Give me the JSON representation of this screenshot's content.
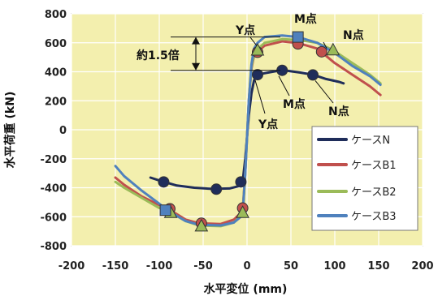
{
  "chart_data": {
    "type": "line",
    "title": "",
    "xlabel": "水平変位 (mm)",
    "ylabel": "水平荷重 (kN)",
    "xlim": [
      -200,
      200
    ],
    "ylim": [
      -800,
      800
    ],
    "x_ticks": [
      "-200",
      "-150",
      "-100",
      "-50",
      "0",
      "50",
      "100",
      "150",
      "200"
    ],
    "y_ticks": [
      "800",
      "600",
      "400",
      "200",
      "0",
      "-200",
      "-400",
      "-600",
      "-800"
    ],
    "plot_background": "#f3efae",
    "legend_placement": "bottom-right",
    "series": [
      {
        "name": "ケースN",
        "color": "#1f2d5a",
        "points": [
          [
            -110,
            -330
          ],
          [
            -100,
            -350
          ],
          [
            -80,
            -385
          ],
          [
            -60,
            -400
          ],
          [
            -40,
            -408
          ],
          [
            -20,
            -405
          ],
          [
            -10,
            -390
          ],
          [
            -5,
            -360
          ],
          [
            -2,
            -200
          ],
          [
            0,
            -50
          ],
          [
            2,
            100
          ],
          [
            5,
            250
          ],
          [
            8,
            340
          ],
          [
            12,
            380
          ],
          [
            20,
            390
          ],
          [
            40,
            412
          ],
          [
            60,
            395
          ],
          [
            75,
            380
          ],
          [
            90,
            350
          ],
          [
            105,
            330
          ],
          [
            110,
            320
          ]
        ],
        "markers": [
          [
            -95,
            -360
          ],
          [
            -35,
            -410
          ],
          [
            -7,
            -360
          ],
          [
            12,
            380
          ],
          [
            40,
            410
          ],
          [
            75,
            378
          ]
        ],
        "marker_shape": "circle"
      },
      {
        "name": "ケースB1",
        "color": "#c0504d",
        "points": [
          [
            -150,
            -330
          ],
          [
            -140,
            -380
          ],
          [
            -120,
            -460
          ],
          [
            -100,
            -520
          ],
          [
            -90,
            -545
          ],
          [
            -70,
            -620
          ],
          [
            -55,
            -645
          ],
          [
            -30,
            -650
          ],
          [
            -15,
            -620
          ],
          [
            -5,
            -560
          ],
          [
            -2,
            -300
          ],
          [
            0,
            -50
          ],
          [
            2,
            200
          ],
          [
            5,
            420
          ],
          [
            8,
            510
          ],
          [
            12,
            540
          ],
          [
            20,
            580
          ],
          [
            40,
            610
          ],
          [
            58,
            598
          ],
          [
            80,
            560
          ],
          [
            100,
            460
          ],
          [
            120,
            380
          ],
          [
            140,
            300
          ],
          [
            152,
            240
          ]
        ],
        "markers": [
          [
            -88,
            -545
          ],
          [
            -52,
            -645
          ],
          [
            -5,
            -540
          ],
          [
            12,
            535
          ],
          [
            58,
            592
          ],
          [
            85,
            538
          ]
        ],
        "marker_shape": "circle"
      },
      {
        "name": "ケースB2",
        "color": "#9bbb59",
        "points": [
          [
            -150,
            -360
          ],
          [
            -140,
            -400
          ],
          [
            -120,
            -470
          ],
          [
            -100,
            -540
          ],
          [
            -90,
            -560
          ],
          [
            -70,
            -630
          ],
          [
            -55,
            -660
          ],
          [
            -30,
            -665
          ],
          [
            -15,
            -640
          ],
          [
            -5,
            -580
          ],
          [
            -2,
            -300
          ],
          [
            0,
            -50
          ],
          [
            2,
            200
          ],
          [
            5,
            430
          ],
          [
            8,
            520
          ],
          [
            12,
            555
          ],
          [
            20,
            600
          ],
          [
            40,
            625
          ],
          [
            58,
            620
          ],
          [
            80,
            600
          ],
          [
            98,
            550
          ],
          [
            120,
            460
          ],
          [
            140,
            380
          ],
          [
            152,
            320
          ]
        ],
        "markers": [
          [
            -87,
            -572
          ],
          [
            -52,
            -665
          ],
          [
            -5,
            -572
          ],
          [
            12,
            548
          ],
          [
            98,
            550
          ]
        ],
        "marker_shape": "triangle"
      },
      {
        "name": "ケースB3",
        "color": "#4f81bd",
        "points": [
          [
            -150,
            -250
          ],
          [
            -140,
            -320
          ],
          [
            -120,
            -420
          ],
          [
            -100,
            -510
          ],
          [
            -92,
            -550
          ],
          [
            -70,
            -630
          ],
          [
            -55,
            -655
          ],
          [
            -30,
            -660
          ],
          [
            -15,
            -640
          ],
          [
            -5,
            -590
          ],
          [
            -2,
            -300
          ],
          [
            0,
            -50
          ],
          [
            2,
            200
          ],
          [
            5,
            450
          ],
          [
            8,
            560
          ],
          [
            12,
            600
          ],
          [
            20,
            640
          ],
          [
            40,
            650
          ],
          [
            58,
            640
          ],
          [
            80,
            600
          ],
          [
            100,
            530
          ],
          [
            120,
            440
          ],
          [
            140,
            370
          ],
          [
            152,
            310
          ]
        ],
        "markers": [
          [
            -93,
            -555
          ],
          [
            58,
            640
          ]
        ],
        "marker_shape": "square"
      }
    ],
    "annotations": {
      "y_point_upper": "Y点",
      "m_point_upper": "M点",
      "n_point_upper": "N点",
      "ratio": "約1.5倍",
      "m_point_lower": "M点",
      "n_point_lower": "N点",
      "y_point_lower": "Y点"
    }
  }
}
